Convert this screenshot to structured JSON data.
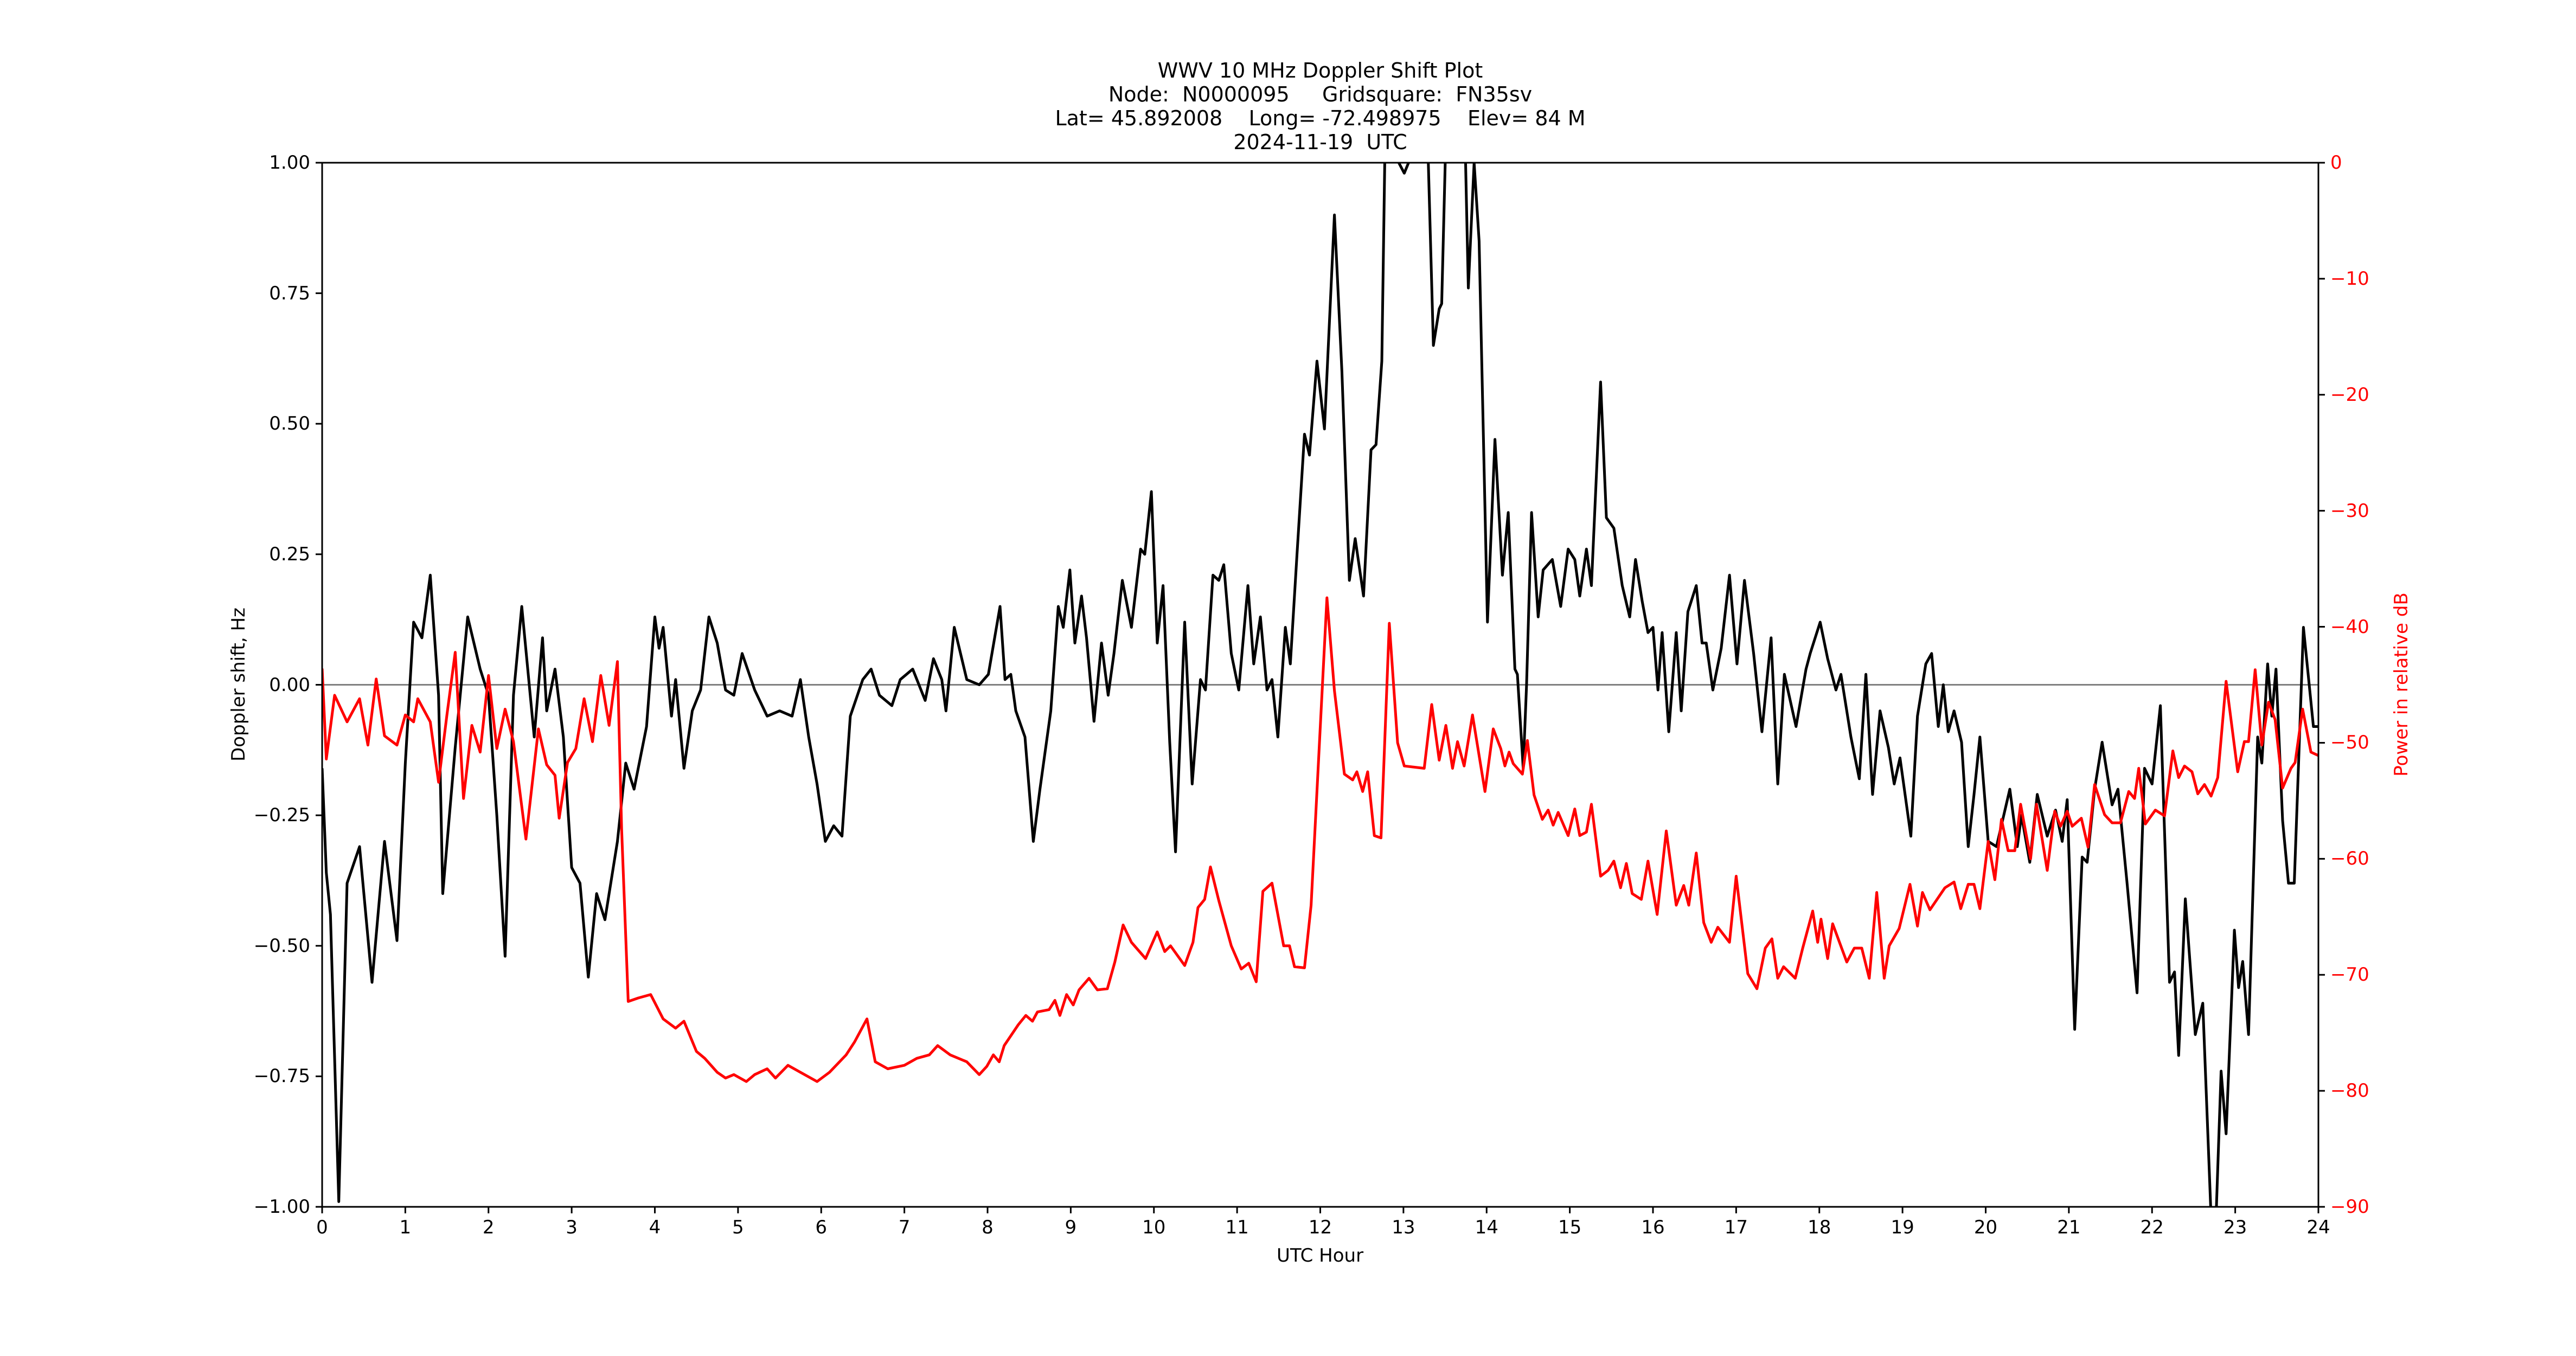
{
  "title": {
    "line1": "WWV 10 MHz Doppler Shift Plot",
    "line2": "Node:  N0000095     Gridsquare:  FN35sv",
    "line3": "Lat= 45.892008    Long= -72.498975    Elev= 84 M",
    "line4": "2024-11-19  UTC"
  },
  "axes": {
    "xlabel": "UTC Hour",
    "ylabel_left": "Doppler shift, Hz",
    "ylabel_right": "Power in relative dB",
    "xticks": [
      "0",
      "1",
      "2",
      "3",
      "4",
      "5",
      "6",
      "7",
      "8",
      "9",
      "10",
      "11",
      "12",
      "13",
      "14",
      "15",
      "16",
      "17",
      "18",
      "19",
      "20",
      "21",
      "22",
      "23",
      "24"
    ],
    "yticks_left": [
      "1.00",
      "0.75",
      "0.50",
      "0.25",
      "0.00",
      "−0.25",
      "−0.50",
      "−0.75",
      "−1.00"
    ],
    "yticks_right": [
      "0",
      "−10",
      "−20",
      "−30",
      "−40",
      "−50",
      "−60",
      "−70",
      "−80",
      "−90"
    ]
  },
  "colors": {
    "doppler_line": "#000000",
    "power_line": "#ff0000",
    "zero_line": "#808080",
    "right_axis_text": "#ff0000"
  },
  "chart_data": {
    "type": "line",
    "title": "WWV 10 MHz Doppler Shift Plot / Node: N0000095 Gridsquare: FN35sv / Lat= 45.892008 Long= -72.498975 Elev= 84 M / 2024-11-19 UTC",
    "xlabel": "UTC Hour",
    "ylabel": "Doppler shift, Hz",
    "ylabel_right": "Power in relative dB",
    "xlim": [
      0,
      24
    ],
    "ylim": [
      -1.0,
      1.0
    ],
    "ylim_right": [
      -90,
      0
    ],
    "grid": false,
    "legend": null,
    "reference_line": {
      "y": 0.0,
      "color": "#808080"
    },
    "series": [
      {
        "name": "Doppler shift (Hz)",
        "axis": "left",
        "color": "#000000",
        "x": [
          0.0,
          0.05,
          0.1,
          0.2,
          0.3,
          0.45,
          0.6,
          0.75,
          0.9,
          1.0,
          1.1,
          1.2,
          1.3,
          1.4,
          1.45,
          1.6,
          1.75,
          1.9,
          2.0,
          2.1,
          2.2,
          2.3,
          2.4,
          2.55,
          2.65,
          2.7,
          2.8,
          2.9,
          3.0,
          3.1,
          3.2,
          3.3,
          3.4,
          3.55,
          3.65,
          3.75,
          3.9,
          4.0,
          4.05,
          4.1,
          4.2,
          4.25,
          4.35,
          4.45,
          4.55,
          4.65,
          4.75,
          4.85,
          4.95,
          5.05,
          5.2,
          5.35,
          5.5,
          5.65,
          5.75,
          5.85,
          5.95,
          6.05,
          6.15,
          6.25,
          6.35,
          6.5,
          6.6,
          6.7,
          6.85,
          6.95,
          7.1,
          7.25,
          7.35,
          7.45,
          7.5,
          7.6,
          7.75,
          7.9,
          8.01,
          8.15,
          8.21,
          8.28,
          8.34,
          8.45,
          8.55,
          8.63,
          8.76,
          8.85,
          8.91,
          8.99,
          9.05,
          9.13,
          9.19,
          9.28,
          9.37,
          9.45,
          9.52,
          9.62,
          9.73,
          9.84,
          9.89,
          9.97,
          10.04,
          10.11,
          10.19,
          10.26,
          10.37,
          10.46,
          10.56,
          10.62,
          10.71,
          10.78,
          10.84,
          10.93,
          11.02,
          11.13,
          11.2,
          11.28,
          11.36,
          11.42,
          11.49,
          11.58,
          11.64,
          11.72,
          11.81,
          11.87,
          11.96,
          12.05,
          12.17,
          12.26,
          12.35,
          12.42,
          12.52,
          12.61,
          12.67,
          12.74,
          12.78,
          13.01,
          13.19,
          13.29,
          13.36,
          13.43,
          13.46,
          13.51,
          13.74,
          13.78,
          13.85,
          13.91,
          14.01,
          14.1,
          14.19,
          14.26,
          14.34,
          14.37,
          14.44,
          14.48,
          14.54,
          14.62,
          14.68,
          14.79,
          14.89,
          14.98,
          15.06,
          15.12,
          15.2,
          15.26,
          15.37,
          15.44,
          15.53,
          15.63,
          15.72,
          15.79,
          15.87,
          15.94,
          16.0,
          16.06,
          16.11,
          16.19,
          16.28,
          16.34,
          16.42,
          16.52,
          16.59,
          16.64,
          16.72,
          16.82,
          16.92,
          17.01,
          17.1,
          17.21,
          17.31,
          17.42,
          17.5,
          17.58,
          17.72,
          17.84,
          17.89,
          18.01,
          18.1,
          18.2,
          18.26,
          18.38,
          18.48,
          18.56,
          18.64,
          18.73,
          18.83,
          18.9,
          18.97,
          19.1,
          19.18,
          19.28,
          19.35,
          19.43,
          19.49,
          19.55,
          19.62,
          19.71,
          19.79,
          19.86,
          19.93,
          20.03,
          20.13,
          20.29,
          20.38,
          20.43,
          20.53,
          20.62,
          20.74,
          20.84,
          20.92,
          20.98,
          21.07,
          21.16,
          21.22,
          21.31,
          21.4,
          21.52,
          21.59,
          21.7,
          21.82,
          21.91,
          22.0,
          22.1,
          22.21,
          22.27,
          22.32,
          22.4,
          22.52,
          22.61,
          22.71,
          22.77,
          22.83,
          22.89,
          22.99,
          23.04,
          23.09,
          23.16,
          23.27,
          23.32,
          23.39,
          23.44,
          23.49,
          23.57,
          23.64,
          23.71,
          23.82,
          23.94,
          24.0
        ],
        "y": [
          -0.16,
          -0.36,
          -0.44,
          -0.99,
          -0.38,
          -0.31,
          -0.57,
          -0.3,
          -0.49,
          -0.15,
          0.12,
          0.09,
          0.21,
          -0.02,
          -0.4,
          -0.12,
          0.13,
          0.03,
          -0.02,
          -0.25,
          -0.52,
          -0.02,
          0.15,
          -0.1,
          0.09,
          -0.05,
          0.03,
          -0.1,
          -0.35,
          -0.38,
          -0.56,
          -0.4,
          -0.45,
          -0.3,
          -0.15,
          -0.2,
          -0.08,
          0.13,
          0.07,
          0.11,
          -0.06,
          0.01,
          -0.16,
          -0.05,
          -0.01,
          0.13,
          0.08,
          -0.01,
          -0.02,
          0.06,
          -0.01,
          -0.06,
          -0.05,
          -0.06,
          0.01,
          -0.1,
          -0.19,
          -0.3,
          -0.27,
          -0.29,
          -0.06,
          0.01,
          0.03,
          -0.02,
          -0.04,
          0.01,
          0.03,
          -0.03,
          0.05,
          0.01,
          -0.05,
          0.11,
          0.01,
          0.0,
          0.02,
          0.15,
          0.01,
          0.02,
          -0.05,
          -0.1,
          -0.3,
          -0.2,
          -0.05,
          0.15,
          0.11,
          0.22,
          0.08,
          0.17,
          0.09,
          -0.07,
          0.08,
          -0.02,
          0.06,
          0.2,
          0.11,
          0.26,
          0.25,
          0.37,
          0.08,
          0.19,
          -0.11,
          -0.32,
          0.12,
          -0.19,
          0.01,
          -0.01,
          0.21,
          0.2,
          0.23,
          0.06,
          -0.01,
          0.19,
          0.04,
          0.13,
          -0.01,
          0.01,
          -0.1,
          0.11,
          0.04,
          0.25,
          0.48,
          0.44,
          0.62,
          0.49,
          0.9,
          0.6,
          0.2,
          0.28,
          0.17,
          0.45,
          0.46,
          0.62,
          1.05,
          0.98,
          1.05,
          1.05,
          0.65,
          0.72,
          0.73,
          1.05,
          1.05,
          0.76,
          1.0,
          0.85,
          0.12,
          0.47,
          0.21,
          0.33,
          0.03,
          0.02,
          -0.16,
          0.0,
          0.33,
          0.13,
          0.22,
          0.24,
          0.15,
          0.26,
          0.24,
          0.17,
          0.26,
          0.19,
          0.58,
          0.32,
          0.3,
          0.19,
          0.13,
          0.24,
          0.16,
          0.1,
          0.11,
          -0.01,
          0.1,
          -0.09,
          0.1,
          -0.05,
          0.14,
          0.19,
          0.08,
          0.08,
          -0.01,
          0.07,
          0.21,
          0.04,
          0.2,
          0.06,
          -0.09,
          0.09,
          -0.19,
          0.02,
          -0.08,
          0.03,
          0.06,
          0.12,
          0.05,
          -0.01,
          0.02,
          -0.1,
          -0.18,
          0.02,
          -0.21,
          -0.05,
          -0.12,
          -0.19,
          -0.14,
          -0.29,
          -0.06,
          0.04,
          0.06,
          -0.08,
          0.0,
          -0.09,
          -0.05,
          -0.11,
          -0.31,
          -0.21,
          -0.1,
          -0.3,
          -0.31,
          -0.2,
          -0.31,
          -0.25,
          -0.34,
          -0.21,
          -0.29,
          -0.24,
          -0.3,
          -0.22,
          -0.66,
          -0.33,
          -0.34,
          -0.2,
          -0.11,
          -0.23,
          -0.2,
          -0.38,
          -0.59,
          -0.16,
          -0.19,
          -0.04,
          -0.57,
          -0.55,
          -0.71,
          -0.41,
          -0.67,
          -0.61,
          -1.02,
          -1.02,
          -0.74,
          -0.86,
          -0.47,
          -0.58,
          -0.53,
          -0.67,
          -0.1,
          -0.15,
          0.04,
          -0.06,
          0.03,
          -0.26,
          -0.38,
          -0.38,
          0.11,
          -0.08,
          -0.08
        ]
      },
      {
        "name": "Power (relative dB)",
        "axis": "right",
        "color": "#ff0000",
        "x": [
          0.0,
          0.05,
          0.15,
          0.3,
          0.45,
          0.55,
          0.65,
          0.75,
          0.9,
          1.0,
          1.1,
          1.15,
          1.3,
          1.4,
          1.5,
          1.6,
          1.7,
          1.8,
          1.9,
          2.0,
          2.1,
          2.2,
          2.3,
          2.45,
          2.6,
          2.7,
          2.8,
          2.85,
          2.95,
          3.05,
          3.15,
          3.25,
          3.35,
          3.45,
          3.55,
          3.6,
          3.68,
          3.8,
          3.95,
          4.1,
          4.25,
          4.35,
          4.5,
          4.6,
          4.75,
          4.85,
          4.95,
          5.1,
          5.2,
          5.35,
          5.45,
          5.6,
          5.75,
          5.95,
          6.1,
          6.3,
          6.4,
          6.55,
          6.65,
          6.8,
          7.0,
          7.15,
          7.3,
          7.4,
          7.55,
          7.75,
          7.9,
          7.99,
          8.07,
          8.14,
          8.2,
          8.37,
          8.46,
          8.54,
          8.6,
          8.74,
          8.81,
          8.87,
          8.95,
          9.03,
          9.1,
          9.22,
          9.32,
          9.44,
          9.53,
          9.63,
          9.73,
          9.9,
          10.04,
          10.13,
          10.2,
          10.37,
          10.47,
          10.53,
          10.61,
          10.68,
          10.78,
          10.93,
          11.05,
          11.14,
          11.23,
          11.31,
          11.42,
          11.56,
          11.63,
          11.69,
          11.81,
          11.89,
          11.99,
          12.08,
          12.17,
          12.29,
          12.39,
          12.44,
          12.51,
          12.57,
          12.65,
          12.73,
          12.83,
          12.93,
          13.01,
          13.25,
          13.34,
          13.43,
          13.51,
          13.59,
          13.65,
          13.73,
          13.83,
          13.98,
          14.08,
          14.17,
          14.22,
          14.27,
          14.32,
          14.43,
          14.49,
          14.57,
          14.67,
          14.74,
          14.8,
          14.86,
          14.98,
          15.06,
          15.12,
          15.2,
          15.26,
          15.37,
          15.46,
          15.53,
          15.61,
          15.68,
          15.75,
          15.86,
          15.94,
          16.05,
          16.16,
          16.28,
          16.37,
          16.43,
          16.52,
          16.61,
          16.7,
          16.78,
          16.92,
          17.0,
          17.14,
          17.25,
          17.35,
          17.43,
          17.5,
          17.57,
          17.71,
          17.8,
          17.92,
          17.98,
          18.02,
          18.1,
          18.16,
          18.33,
          18.42,
          18.51,
          18.6,
          18.69,
          18.78,
          18.84,
          18.96,
          19.09,
          19.18,
          19.24,
          19.33,
          19.51,
          19.62,
          19.7,
          19.79,
          19.86,
          19.93,
          20.03,
          20.11,
          20.19,
          20.27,
          20.35,
          20.42,
          20.54,
          20.61,
          20.74,
          20.83,
          20.9,
          20.98,
          21.04,
          21.15,
          21.23,
          21.31,
          21.43,
          21.52,
          21.62,
          21.72,
          21.79,
          21.84,
          21.92,
          22.04,
          22.15,
          22.25,
          22.32,
          22.39,
          22.48,
          22.55,
          22.63,
          22.71,
          22.79,
          22.89,
          23.03,
          23.11,
          23.16,
          23.24,
          23.32,
          23.4,
          23.48,
          23.57,
          23.67,
          23.72,
          23.81,
          23.91,
          24.0
        ],
        "y": [
          -43.6,
          -51.4,
          -45.9,
          -48.2,
          -46.2,
          -50.2,
          -44.5,
          -49.4,
          -50.2,
          -47.6,
          -48.2,
          -46.2,
          -48.2,
          -53.4,
          -47.6,
          -42.2,
          -54.8,
          -48.5,
          -50.8,
          -44.2,
          -50.5,
          -47.1,
          -49.9,
          -58.3,
          -48.8,
          -51.9,
          -52.8,
          -56.5,
          -51.7,
          -50.5,
          -46.2,
          -49.9,
          -44.2,
          -48.5,
          -43.0,
          -57.4,
          -72.3,
          -72.0,
          -71.7,
          -73.8,
          -74.6,
          -74.0,
          -76.6,
          -77.2,
          -78.4,
          -78.9,
          -78.6,
          -79.2,
          -78.6,
          -78.1,
          -78.9,
          -77.8,
          -78.4,
          -79.2,
          -78.4,
          -76.9,
          -75.8,
          -73.8,
          -77.5,
          -78.1,
          -77.8,
          -77.2,
          -76.9,
          -76.1,
          -76.9,
          -77.5,
          -78.6,
          -77.9,
          -76.9,
          -77.5,
          -76.1,
          -74.3,
          -73.5,
          -74.0,
          -73.2,
          -73.0,
          -72.2,
          -73.5,
          -71.7,
          -72.6,
          -71.3,
          -70.3,
          -71.3,
          -71.2,
          -68.9,
          -65.7,
          -67.2,
          -68.6,
          -66.3,
          -68.0,
          -67.5,
          -69.2,
          -67.2,
          -64.2,
          -63.5,
          -60.7,
          -63.6,
          -67.5,
          -69.5,
          -69.0,
          -70.6,
          -62.8,
          -62.1,
          -67.5,
          -67.5,
          -69.3,
          -69.4,
          -64.0,
          -50.0,
          -37.5,
          -45.5,
          -52.7,
          -53.2,
          -52.5,
          -54.2,
          -52.5,
          -58.0,
          -58.2,
          -39.7,
          -50.0,
          -52.0,
          -52.2,
          -46.7,
          -51.5,
          -48.5,
          -52.2,
          -49.9,
          -52.0,
          -47.6,
          -54.2,
          -48.8,
          -50.5,
          -52.0,
          -50.8,
          -51.8,
          -52.7,
          -49.8,
          -54.5,
          -56.6,
          -55.8,
          -57.1,
          -56.0,
          -58.0,
          -55.7,
          -58.0,
          -57.7,
          -55.3,
          -61.5,
          -61.0,
          -60.2,
          -62.5,
          -60.4,
          -63.0,
          -63.5,
          -60.2,
          -64.8,
          -57.6,
          -64.0,
          -62.3,
          -64.0,
          -59.5,
          -65.5,
          -67.2,
          -65.9,
          -67.2,
          -61.5,
          -69.9,
          -71.2,
          -67.7,
          -66.9,
          -70.3,
          -69.3,
          -70.3,
          -67.7,
          -64.5,
          -67.2,
          -65.2,
          -68.6,
          -65.6,
          -68.9,
          -67.7,
          -67.7,
          -70.3,
          -62.9,
          -70.3,
          -67.5,
          -66.0,
          -62.2,
          -65.8,
          -62.9,
          -64.4,
          -62.5,
          -62.0,
          -64.3,
          -62.2,
          -62.2,
          -64.3,
          -58.5,
          -61.8,
          -56.6,
          -59.3,
          -59.3,
          -55.3,
          -60.0,
          -55.3,
          -61.0,
          -55.9,
          -57.2,
          -55.9,
          -57.2,
          -56.5,
          -59.0,
          -53.6,
          -56.2,
          -56.9,
          -56.9,
          -54.2,
          -54.8,
          -52.2,
          -57.0,
          -55.8,
          -56.3,
          -50.7,
          -53.0,
          -52.0,
          -52.5,
          -54.4,
          -53.6,
          -54.6,
          -53.0,
          -44.7,
          -52.5,
          -49.9,
          -49.9,
          -43.7,
          -50.2,
          -46.5,
          -48.0,
          -53.9,
          -52.2,
          -51.7,
          -47.1,
          -50.8,
          -51.1
        ]
      }
    ]
  }
}
